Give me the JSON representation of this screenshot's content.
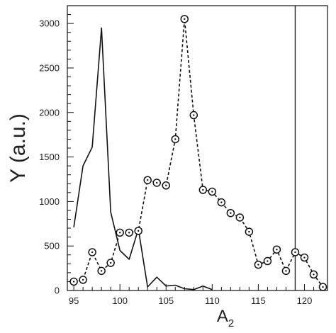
{
  "chart_data": {
    "type": "line",
    "xlabel": "A",
    "xlabel_subscript": "2",
    "ylabel": "Y (a.u.)",
    "xlim": [
      94.3,
      122.5
    ],
    "ylim": [
      0,
      3200
    ],
    "x_ticks": [
      95,
      100,
      105,
      110,
      115,
      120
    ],
    "y_ticks": [
      0,
      500,
      1000,
      1500,
      2000,
      2500,
      3000
    ],
    "grid": false,
    "series": [
      {
        "style": "solid line",
        "color": "#111111",
        "x": [
          95,
          96,
          97,
          98,
          99,
          100,
          101,
          102,
          103,
          104,
          105,
          106,
          107,
          108,
          109,
          110
        ],
        "y": [
          710,
          1400,
          1610,
          2950,
          880,
          450,
          350,
          690,
          40,
          150,
          50,
          60,
          20,
          10,
          50,
          10
        ]
      },
      {
        "style": "dashed line with circle markers",
        "color": "#111111",
        "x": [
          95,
          96,
          97,
          98,
          99,
          100,
          101,
          102,
          103,
          104,
          105,
          106,
          107,
          108,
          109,
          110,
          111,
          112,
          113,
          114,
          115,
          116,
          117,
          118,
          119,
          120,
          121,
          122
        ],
        "y": [
          100,
          120,
          430,
          220,
          310,
          650,
          650,
          670,
          1240,
          1210,
          1180,
          1700,
          3050,
          1970,
          1130,
          1110,
          990,
          870,
          820,
          660,
          290,
          330,
          460,
          220,
          430,
          370,
          180,
          40
        ]
      }
    ],
    "vertical_line_x": 119
  }
}
